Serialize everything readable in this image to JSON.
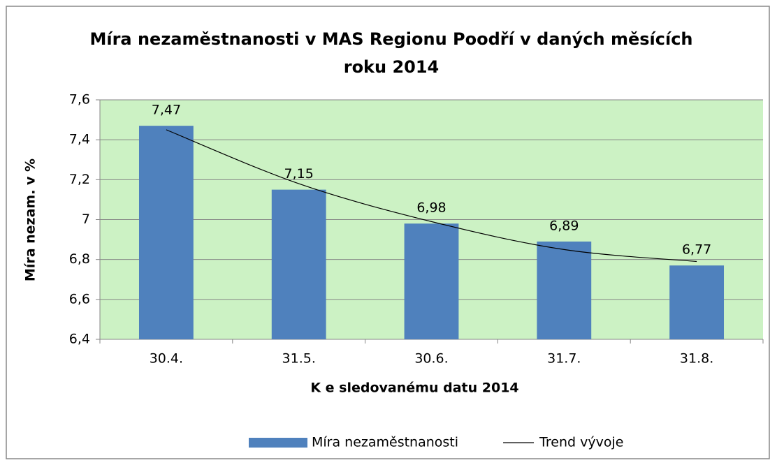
{
  "chart_data": {
    "type": "bar",
    "title": "Míra nezaměstnanosti v MAS Regionu Poodří v daných měsících roku 2014",
    "x_label": "K e sledovanému datu 2014",
    "y_label": "Míra nezam. v %",
    "categories": [
      "30.4.",
      "31.5.",
      "30.6.",
      "31.7.",
      "31.8."
    ],
    "series": [
      {
        "name": "Míra nezaměstnanosti",
        "color": "#4f81bd",
        "type": "bar",
        "values": [
          7.47,
          7.15,
          6.98,
          6.89,
          6.77
        ],
        "value_labels": [
          "7,47",
          "7,15",
          "6,98",
          "6,89",
          "6,77"
        ]
      },
      {
        "name": "Trend vývoje",
        "color": "#000000",
        "type": "line",
        "values": [
          7.45,
          7.18,
          6.99,
          6.85,
          6.79
        ]
      }
    ],
    "ylim": [
      6.4,
      7.6
    ],
    "yticks": [
      {
        "value": 6.4,
        "label": "6,4"
      },
      {
        "value": 6.6,
        "label": "6,6"
      },
      {
        "value": 6.8,
        "label": "6,8"
      },
      7,
      {
        "value": 7.2,
        "label": "7,2"
      },
      {
        "value": 7.4,
        "label": "7,4"
      },
      {
        "value": 7.6,
        "label": "7,6"
      }
    ],
    "grid": true,
    "plot_background": "#ccf2c4",
    "legend": "bottom"
  }
}
